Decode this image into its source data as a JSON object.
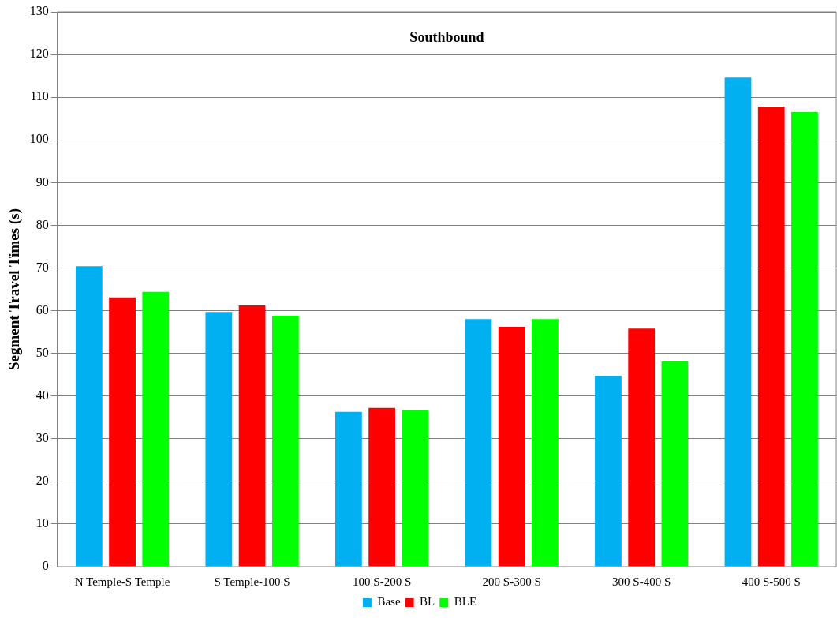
{
  "chart_data": {
    "type": "bar",
    "title": "Southbound",
    "ylabel": "Segment Travel Times (s)",
    "categories": [
      "N Temple-S Temple",
      "S Temple-100 S",
      "100 S-200 S",
      "200 S-300 S",
      "300 S-400 S",
      "400 S-500 S"
    ],
    "series": [
      {
        "name": "Base",
        "color": "#00b0f0",
        "values": [
          70.4,
          59.7,
          36.3,
          58.0,
          44.7,
          114.6
        ]
      },
      {
        "name": "BL",
        "color": "#ff0000",
        "values": [
          63.1,
          61.2,
          37.2,
          56.2,
          55.8,
          107.8
        ]
      },
      {
        "name": "BLE",
        "color": "#00ff00",
        "values": [
          64.4,
          58.8,
          36.6,
          58.0,
          48.1,
          106.5
        ]
      }
    ],
    "ylim": [
      0,
      130
    ],
    "yticks": [
      0,
      10,
      20,
      30,
      40,
      50,
      60,
      70,
      80,
      90,
      100,
      110,
      120,
      130
    ],
    "grid": "y",
    "legend": "bottom"
  }
}
